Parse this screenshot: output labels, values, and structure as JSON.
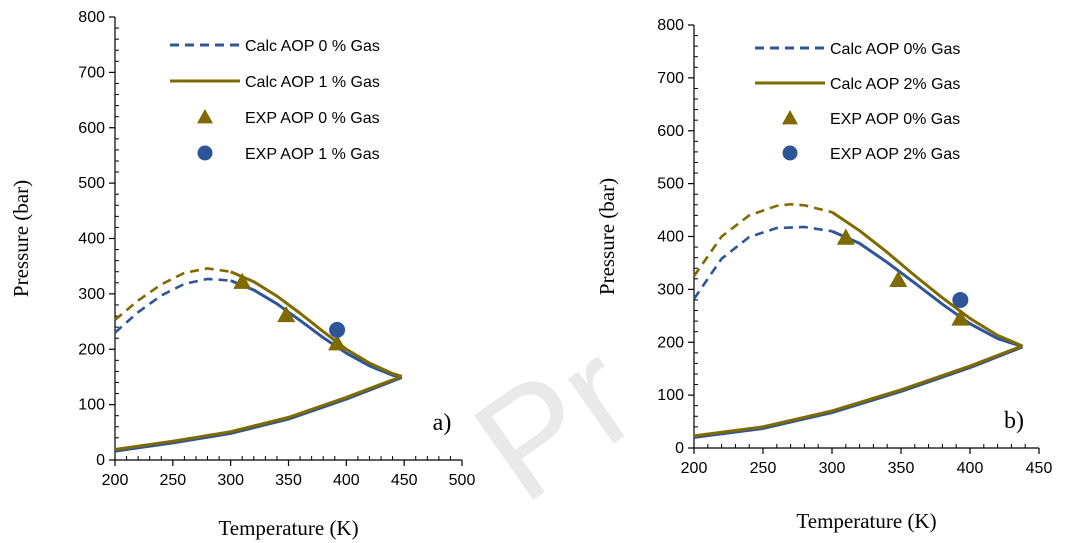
{
  "watermark": "Pr",
  "colors": {
    "blue": "#2e5597",
    "olive": "#7f6a00",
    "axis": "#000000"
  },
  "chart_data": [
    {
      "type": "line",
      "panel_label": "a)",
      "xlabel": "Temperature (K)",
      "ylabel": "Pressure (bar)",
      "xlim": [
        200,
        500
      ],
      "ylim": [
        0,
        800
      ],
      "xticks": [
        200,
        250,
        300,
        350,
        400,
        450,
        500
      ],
      "yticks": [
        0,
        100,
        200,
        300,
        400,
        500,
        600,
        700,
        800
      ],
      "grid": false,
      "legend": "top-right",
      "series": [
        {
          "name": "Calc AOP 0 % Gas",
          "kind": "line",
          "color": "#2e5597",
          "dashed_below": 310,
          "x": [
            200,
            220,
            240,
            260,
            280,
            300,
            320,
            340,
            360,
            380,
            400,
            420,
            440,
            448
          ],
          "y": [
            230,
            267,
            297,
            318,
            327,
            324,
            307,
            282,
            252,
            221,
            193,
            170,
            153,
            150
          ]
        },
        {
          "name": "Calc AOP 1 % Gas",
          "kind": "line",
          "color": "#7f6a00",
          "dashed_below": 310,
          "x": [
            200,
            220,
            240,
            260,
            280,
            300,
            320,
            340,
            360,
            380,
            400,
            420,
            440,
            448
          ],
          "y": [
            253,
            288,
            317,
            338,
            346,
            340,
            322,
            296,
            265,
            232,
            200,
            175,
            156,
            151
          ]
        },
        {
          "name": "EXP AOP   0 % Gas",
          "kind": "triangle",
          "color": "#7f6a00",
          "x": [
            310,
            348,
            392
          ],
          "y": [
            322,
            262,
            211
          ]
        },
        {
          "name": "EXP AOP 1 % Gas",
          "kind": "circle",
          "color": "#2e5597",
          "x": [
            392
          ],
          "y": [
            235
          ]
        },
        {
          "name": "",
          "kind": "line",
          "color": "#2e5597",
          "legend": false,
          "x": [
            200,
            250,
            300,
            350,
            400,
            448
          ],
          "y": [
            16,
            31,
            48,
            74,
            110,
            149
          ]
        },
        {
          "name": "",
          "kind": "line",
          "color": "#7f6a00",
          "legend": false,
          "x": [
            200,
            250,
            300,
            350,
            400,
            448
          ],
          "y": [
            19,
            34,
            51,
            77,
            113,
            151
          ]
        }
      ]
    },
    {
      "type": "line",
      "panel_label": "b)",
      "xlabel": "Temperature (K)",
      "ylabel": "Pressure (bar)",
      "xlim": [
        200,
        450
      ],
      "ylim": [
        0,
        800
      ],
      "xticks": [
        200,
        250,
        300,
        350,
        400,
        450
      ],
      "yticks": [
        0,
        100,
        200,
        300,
        400,
        500,
        600,
        700,
        800
      ],
      "grid": false,
      "legend": "top-right",
      "series": [
        {
          "name": "Calc AOP 0% Gas",
          "kind": "line",
          "color": "#2e5597",
          "dashed_below": 310,
          "x": [
            200,
            220,
            240,
            260,
            280,
            300,
            320,
            340,
            360,
            380,
            400,
            420,
            438
          ],
          "y": [
            282,
            358,
            399,
            416,
            418,
            410,
            387,
            351,
            312,
            272,
            235,
            207,
            192
          ]
        },
        {
          "name": "Calc AOP 2% Gas",
          "kind": "line",
          "color": "#7f6a00",
          "dashed_below": 314,
          "x": [
            200,
            220,
            240,
            260,
            270,
            280,
            300,
            320,
            340,
            360,
            380,
            400,
            420,
            438
          ],
          "y": [
            325,
            400,
            440,
            458,
            461,
            459,
            446,
            411,
            370,
            326,
            284,
            245,
            213,
            193
          ]
        },
        {
          "name": "EXP AOP 0% Gas",
          "kind": "triangle",
          "color": "#7f6a00",
          "x": [
            310,
            348,
            393
          ],
          "y": [
            398,
            318,
            245
          ]
        },
        {
          "name": "EXP AOP 2% Gas",
          "kind": "circle",
          "color": "#2e5597",
          "x": [
            393
          ],
          "y": [
            280
          ]
        },
        {
          "name": "",
          "kind": "line",
          "color": "#2e5597",
          "legend": false,
          "x": [
            200,
            250,
            300,
            350,
            400,
            438
          ],
          "y": [
            20,
            37,
            67,
            107,
            152,
            191
          ]
        },
        {
          "name": "",
          "kind": "line",
          "color": "#7f6a00",
          "legend": false,
          "x": [
            200,
            250,
            300,
            350,
            400,
            438
          ],
          "y": [
            23,
            40,
            70,
            110,
            155,
            193
          ]
        }
      ]
    }
  ]
}
